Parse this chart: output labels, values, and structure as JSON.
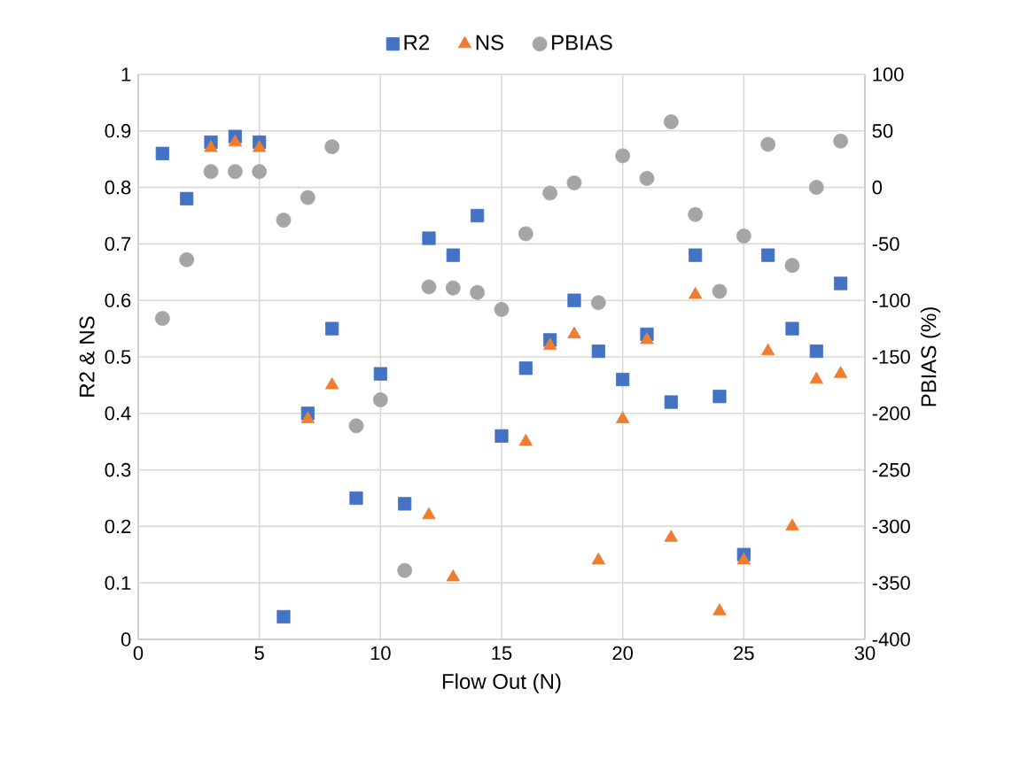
{
  "chart_data": {
    "type": "scatter",
    "xlabel": "Flow Out (N)",
    "ylabel": "R2 & NS",
    "y2label": "PBIAS (%)",
    "x": [
      1,
      2,
      3,
      4,
      5,
      6,
      7,
      8,
      9,
      10,
      11,
      12,
      13,
      14,
      15,
      16,
      17,
      18,
      19,
      20,
      21,
      22,
      23,
      24,
      25,
      26,
      27,
      28,
      29
    ],
    "series": [
      {
        "name": "R2",
        "color": "#4472c4",
        "marker": "square",
        "values": [
          0.86,
          0.78,
          0.88,
          0.89,
          0.88,
          0.04,
          0.4,
          0.55,
          0.25,
          0.47,
          0.24,
          0.71,
          0.68,
          0.75,
          0.36,
          0.48,
          0.53,
          0.6,
          0.51,
          0.46,
          0.54,
          0.42,
          0.68,
          0.43,
          0.15,
          0.68,
          0.55,
          0.51,
          0.63
        ]
      },
      {
        "name": "NS",
        "color": "#ed7d31",
        "marker": "triangle",
        "x": [
          3,
          4,
          5,
          7,
          8,
          12,
          13,
          16,
          17,
          18,
          19,
          20,
          21,
          22,
          23,
          24,
          25,
          26,
          27,
          28,
          29
        ],
        "values": [
          0.87,
          0.88,
          0.87,
          0.39,
          0.45,
          0.22,
          0.11,
          0.35,
          0.52,
          0.54,
          0.14,
          0.39,
          0.53,
          0.18,
          0.61,
          0.05,
          0.14,
          0.51,
          0.2,
          0.46,
          0.47
        ]
      },
      {
        "name": "PBIAS",
        "color": "#a5a5a5",
        "marker": "circle",
        "axis": "y2",
        "values": [
          -116,
          -64,
          14,
          14,
          14,
          -29,
          -9,
          36,
          -211,
          -188,
          -339,
          -88,
          -89,
          -93,
          -108,
          -41,
          -5,
          4,
          -102,
          28,
          8,
          58,
          -24,
          -92,
          -43,
          38,
          -69,
          0,
          41
        ]
      }
    ],
    "xlim": [
      0,
      30
    ],
    "xticks": [
      0,
      5,
      10,
      15,
      20,
      25,
      30
    ],
    "ylim": [
      0,
      1
    ],
    "yticks": [
      0,
      0.1,
      0.2,
      0.3,
      0.4,
      0.5,
      0.6,
      0.7,
      0.8,
      0.9,
      1
    ],
    "y2lim": [
      -400,
      100
    ],
    "y2ticks": [
      -400,
      -350,
      -300,
      -250,
      -200,
      -150,
      -100,
      -50,
      0,
      50,
      100
    ],
    "grid": true,
    "legend": "top"
  }
}
